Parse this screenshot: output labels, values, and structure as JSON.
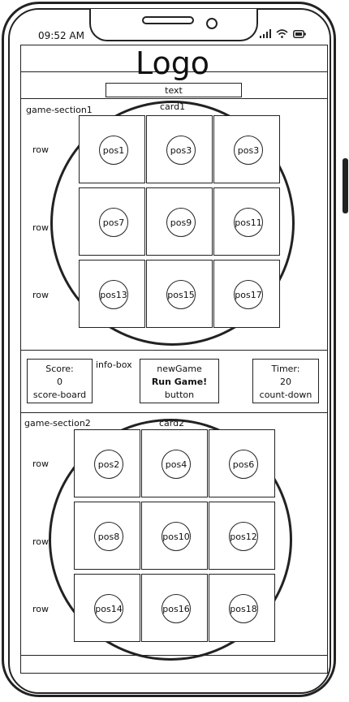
{
  "status_bar": {
    "time": "09:52 AM"
  },
  "header": {
    "logo": "Logo",
    "text": "text"
  },
  "section1": {
    "label": "game-section1",
    "card_label": "card1",
    "row_label": "row",
    "positions": [
      "pos1",
      "pos3",
      "pos3",
      "pos7",
      "pos9",
      "pos11",
      "pos13",
      "pos15",
      "pos17"
    ]
  },
  "info_box": {
    "label": "info-box",
    "score_title": "Score:",
    "score_value": "0",
    "score_caption": "score-board",
    "game_title": "newGame",
    "game_button": "Run Game!",
    "game_caption": "button",
    "timer_title": "Timer:",
    "timer_value": "20",
    "timer_caption": "count-down"
  },
  "section2": {
    "label": "game-section2",
    "card_label": "card2",
    "row_label": "row",
    "positions": [
      "pos2",
      "pos4",
      "pos6",
      "pos8",
      "pos10",
      "pos12",
      "pos14",
      "pos16",
      "pos18"
    ]
  }
}
